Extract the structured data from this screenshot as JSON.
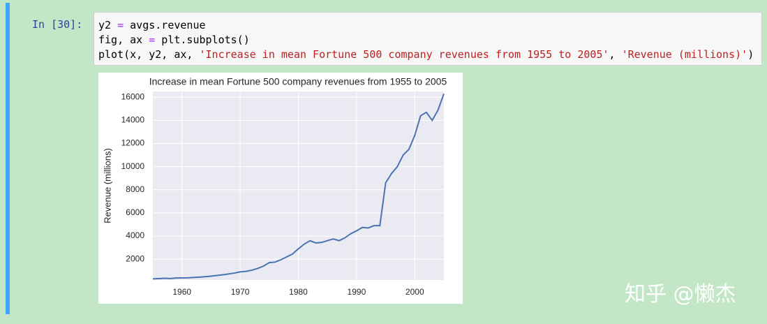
{
  "cell": {
    "prompt": "In [30]:",
    "code": [
      [
        "y2 ",
        "=",
        " avgs.revenue"
      ],
      [
        "fig, ax ",
        "=",
        " plt.subplots()"
      ],
      [
        "plot(x, y2, ax, ",
        "'Increase in mean Fortune 500 company revenues from 1955 to 2005'",
        ", ",
        "'Revenue (millions)'",
        ")"
      ]
    ]
  },
  "chart_data": {
    "type": "line",
    "title": "Increase in mean Fortune 500 company revenues from 1955 to 2005",
    "y_label": "Revenue (millions)",
    "x": [
      1955,
      1956,
      1957,
      1958,
      1959,
      1960,
      1961,
      1962,
      1963,
      1964,
      1965,
      1966,
      1967,
      1968,
      1969,
      1970,
      1971,
      1972,
      1973,
      1974,
      1975,
      1976,
      1977,
      1978,
      1979,
      1980,
      1981,
      1982,
      1983,
      1984,
      1985,
      1986,
      1987,
      1988,
      1989,
      1990,
      1991,
      1992,
      1993,
      1994,
      1995,
      1996,
      1997,
      1998,
      1999,
      2000,
      2001,
      2002,
      2003,
      2004,
      2005
    ],
    "values": [
      300,
      320,
      350,
      330,
      370,
      380,
      390,
      420,
      450,
      490,
      530,
      590,
      650,
      720,
      800,
      900,
      950,
      1050,
      1200,
      1400,
      1700,
      1750,
      1950,
      2200,
      2450,
      2900,
      3300,
      3600,
      3400,
      3450,
      3600,
      3750,
      3600,
      3850,
      4200,
      4450,
      4750,
      4700,
      4900,
      4900,
      8600,
      9400,
      10000,
      11000,
      11500,
      12700,
      14400,
      14700,
      14000,
      14900,
      16300
    ],
    "color": "#4c72b0",
    "xlim": [
      1955,
      2005
    ],
    "xticks": [
      1960,
      1970,
      1980,
      1990,
      2000
    ],
    "ylim": [
      200,
      16500
    ],
    "yticks": [
      2000,
      4000,
      6000,
      8000,
      10000,
      12000,
      14000,
      16000
    ],
    "grid": true
  },
  "watermark": "知乎 @懒杰"
}
